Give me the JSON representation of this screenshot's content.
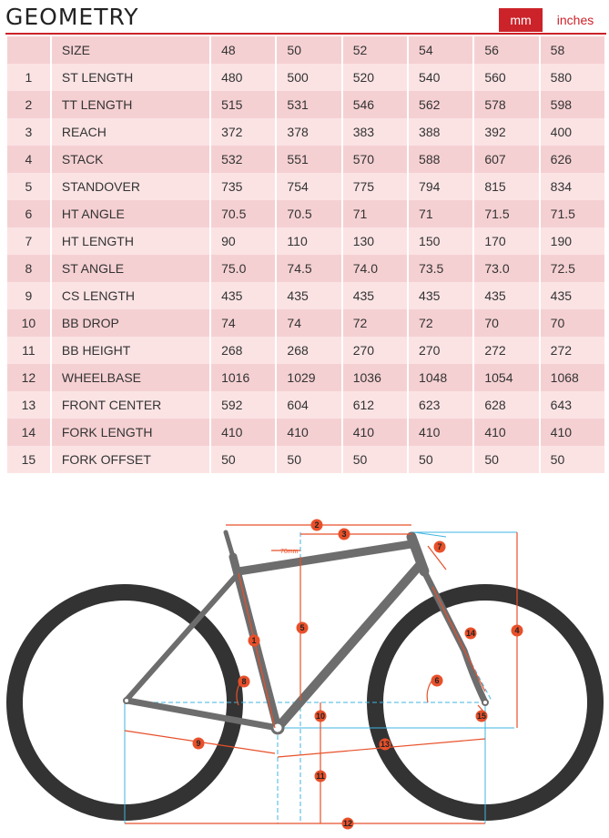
{
  "header": {
    "title": "GEOMETRY",
    "unit_mm": "mm",
    "unit_inches": "inches"
  },
  "table": {
    "size_label": "SIZE",
    "sizes": [
      "48",
      "50",
      "52",
      "54",
      "56",
      "58"
    ],
    "rows": [
      {
        "idx": "1",
        "label": "ST LENGTH",
        "values": [
          "480",
          "500",
          "520",
          "540",
          "560",
          "580"
        ]
      },
      {
        "idx": "2",
        "label": "TT LENGTH",
        "values": [
          "515",
          "531",
          "546",
          "562",
          "578",
          "598"
        ]
      },
      {
        "idx": "3",
        "label": "REACH",
        "values": [
          "372",
          "378",
          "383",
          "388",
          "392",
          "400"
        ]
      },
      {
        "idx": "4",
        "label": "STACK",
        "values": [
          "532",
          "551",
          "570",
          "588",
          "607",
          "626"
        ]
      },
      {
        "idx": "5",
        "label": "STANDOVER",
        "values": [
          "735",
          "754",
          "775",
          "794",
          "815",
          "834"
        ]
      },
      {
        "idx": "6",
        "label": "HT ANGLE",
        "values": [
          "70.5",
          "70.5",
          "71",
          "71",
          "71.5",
          "71.5"
        ]
      },
      {
        "idx": "7",
        "label": "HT LENGTH",
        "values": [
          "90",
          "110",
          "130",
          "150",
          "170",
          "190"
        ]
      },
      {
        "idx": "8",
        "label": "ST ANGLE",
        "values": [
          "75.0",
          "74.5",
          "74.0",
          "73.5",
          "73.0",
          "72.5"
        ]
      },
      {
        "idx": "9",
        "label": "CS LENGTH",
        "values": [
          "435",
          "435",
          "435",
          "435",
          "435",
          "435"
        ]
      },
      {
        "idx": "10",
        "label": "BB DROP",
        "values": [
          "74",
          "74",
          "72",
          "72",
          "70",
          "70"
        ]
      },
      {
        "idx": "11",
        "label": "BB HEIGHT",
        "values": [
          "268",
          "268",
          "270",
          "270",
          "272",
          "272"
        ]
      },
      {
        "idx": "12",
        "label": "WHEELBASE",
        "values": [
          "1016",
          "1029",
          "1036",
          "1048",
          "1054",
          "1068"
        ]
      },
      {
        "idx": "13",
        "label": "FRONT CENTER",
        "values": [
          "592",
          "604",
          "612",
          "623",
          "628",
          "643"
        ]
      },
      {
        "idx": "14",
        "label": "FORK LENGTH",
        "values": [
          "410",
          "410",
          "410",
          "410",
          "410",
          "410"
        ]
      },
      {
        "idx": "15",
        "label": "FORK OFFSET",
        "values": [
          "50",
          "50",
          "50",
          "50",
          "50",
          "50"
        ]
      }
    ]
  },
  "diagram": {
    "offset_label": "70mm",
    "markers": [
      "1",
      "2",
      "3",
      "4",
      "5",
      "6",
      "7",
      "8",
      "9",
      "10",
      "11",
      "12",
      "13",
      "14",
      "15"
    ],
    "colors": {
      "accent": "#cc2229",
      "marker": "#e8502a",
      "frame": "#6d6d6d",
      "tire": "#333333",
      "guide": "#3fb5e0",
      "row_light": "#fbe3e4",
      "row_dark": "#f5d0d2"
    }
  }
}
